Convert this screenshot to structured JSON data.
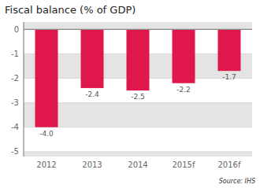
{
  "chart_data": {
    "type": "bar",
    "title": "Fiscal balance (% of GDP)",
    "categories": [
      "2012",
      "2013",
      "2014",
      "2015f",
      "2016f"
    ],
    "values": [
      -4.0,
      -2.4,
      -2.5,
      -2.2,
      -1.7
    ],
    "value_labels": [
      "-4.0",
      "-2.4",
      "-2.5",
      "-2.2",
      "-1.7"
    ],
    "data_labels": true,
    "color": "#e0174a",
    "ylim": [
      -5.2,
      0.3
    ],
    "yticks": [
      0,
      -1,
      -2,
      -3,
      -4,
      -5
    ],
    "grid": true,
    "source": "Source: IHS"
  }
}
